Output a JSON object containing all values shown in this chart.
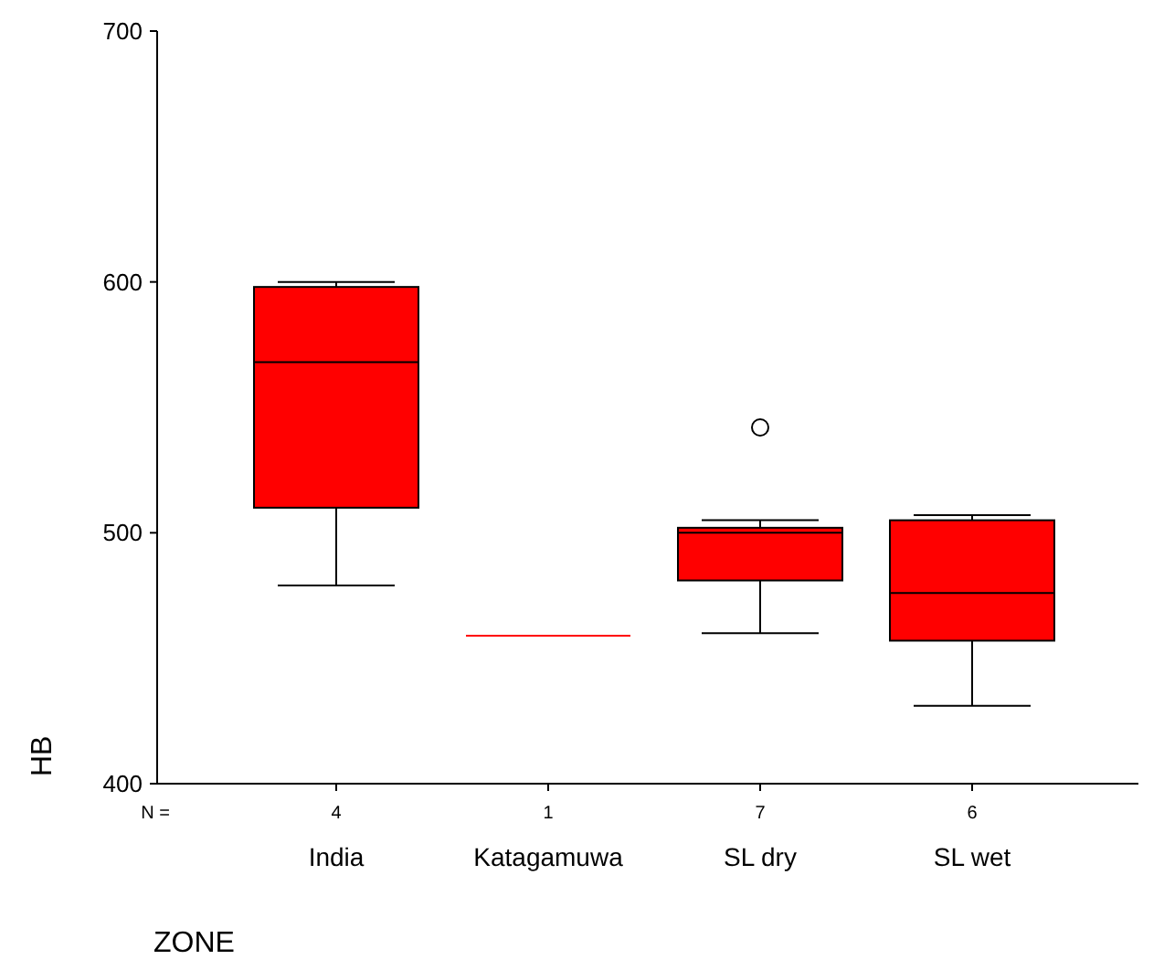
{
  "chart_data": {
    "type": "box",
    "xlabel": "ZONE",
    "ylabel": "HB",
    "categories": [
      "India",
      "Katagamuwa",
      "SL dry",
      "SL wet"
    ],
    "color": "#ff0000",
    "boxes": [
      {
        "low": 479,
        "q1": 510,
        "median": 568,
        "q3": 598,
        "high": 600
      },
      {
        "low": 459,
        "q1": 459,
        "median": 459,
        "q3": 459,
        "high": 459
      },
      {
        "low": 460,
        "q1": 481,
        "median": 500,
        "q3": 502,
        "high": 505,
        "outliers": [
          542
        ]
      },
      {
        "low": 431,
        "q1": 457,
        "median": 476,
        "q3": 505,
        "high": 507
      }
    ],
    "ylim": [
      400,
      700
    ],
    "yticks": [
      400,
      500,
      600,
      700
    ],
    "annotations": [
      "N =",
      "4",
      "1",
      "7",
      "6"
    ]
  }
}
